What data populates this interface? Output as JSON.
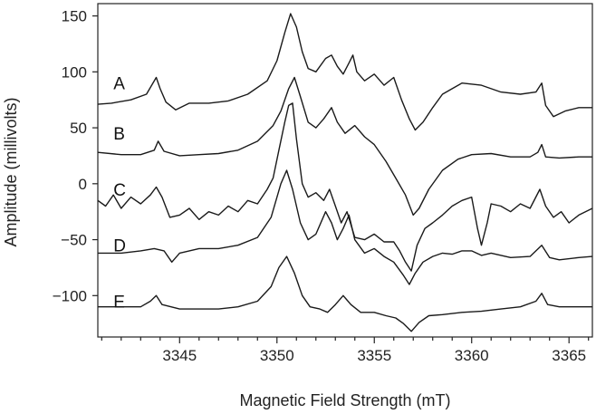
{
  "chart_data": {
    "type": "line",
    "title": "",
    "xlabel": "Magnetic Field Strength (mT)",
    "ylabel": "Amplitude (millivolts)",
    "xlim": [
      3340.8,
      3366.2
    ],
    "ylim": [
      -137,
      161
    ],
    "x_ticks": [
      3345,
      3350,
      3355,
      3360,
      3365
    ],
    "y_ticks": [
      150,
      100,
      50,
      0,
      -50,
      -100
    ],
    "y_tick_labels": [
      "150",
      "100",
      "50",
      "0",
      "−50",
      "−100"
    ],
    "grid": false,
    "legend": "none",
    "series": [
      {
        "name": "A",
        "label_at": [
          3341.6,
          90
        ],
        "points": [
          [
            3340.8,
            71
          ],
          [
            3341.5,
            72
          ],
          [
            3342.5,
            75
          ],
          [
            3343.3,
            80
          ],
          [
            3343.8,
            95
          ],
          [
            3344.0,
            85
          ],
          [
            3344.3,
            73
          ],
          [
            3344.8,
            66
          ],
          [
            3345.5,
            72
          ],
          [
            3346.5,
            72
          ],
          [
            3347.5,
            74
          ],
          [
            3348.5,
            80
          ],
          [
            3349.5,
            92
          ],
          [
            3350.0,
            110
          ],
          [
            3350.4,
            135
          ],
          [
            3350.7,
            152
          ],
          [
            3351.0,
            140
          ],
          [
            3351.3,
            118
          ],
          [
            3351.6,
            103
          ],
          [
            3352.0,
            100
          ],
          [
            3352.5,
            112
          ],
          [
            3352.8,
            115
          ],
          [
            3353.1,
            105
          ],
          [
            3353.4,
            98
          ],
          [
            3353.7,
            108
          ],
          [
            3353.9,
            115
          ],
          [
            3354.1,
            100
          ],
          [
            3354.5,
            92
          ],
          [
            3355.0,
            98
          ],
          [
            3355.5,
            88
          ],
          [
            3356.0,
            95
          ],
          [
            3356.4,
            75
          ],
          [
            3356.8,
            58
          ],
          [
            3357.1,
            48
          ],
          [
            3357.5,
            55
          ],
          [
            3358.0,
            68
          ],
          [
            3358.5,
            80
          ],
          [
            3359.0,
            85
          ],
          [
            3359.5,
            90
          ],
          [
            3360.5,
            88
          ],
          [
            3361.5,
            82
          ],
          [
            3362.5,
            80
          ],
          [
            3363.3,
            82
          ],
          [
            3363.6,
            90
          ],
          [
            3363.8,
            70
          ],
          [
            3364.2,
            60
          ],
          [
            3364.8,
            65
          ],
          [
            3365.5,
            68
          ],
          [
            3366.2,
            68
          ]
        ]
      },
      {
        "name": "B",
        "label_at": [
          3341.6,
          45
        ],
        "points": [
          [
            3340.8,
            28
          ],
          [
            3342.0,
            26
          ],
          [
            3343.0,
            26
          ],
          [
            3343.7,
            30
          ],
          [
            3343.9,
            38
          ],
          [
            3344.2,
            29
          ],
          [
            3345.0,
            25
          ],
          [
            3346.0,
            26
          ],
          [
            3347.0,
            27
          ],
          [
            3348.0,
            30
          ],
          [
            3349.0,
            38
          ],
          [
            3349.8,
            52
          ],
          [
            3350.2,
            65
          ],
          [
            3350.6,
            85
          ],
          [
            3350.9,
            95
          ],
          [
            3351.2,
            78
          ],
          [
            3351.6,
            55
          ],
          [
            3352.0,
            50
          ],
          [
            3352.4,
            58
          ],
          [
            3352.8,
            68
          ],
          [
            3353.1,
            55
          ],
          [
            3353.5,
            45
          ],
          [
            3354.0,
            52
          ],
          [
            3354.5,
            42
          ],
          [
            3355.0,
            35
          ],
          [
            3355.6,
            20
          ],
          [
            3356.1,
            5
          ],
          [
            3356.6,
            -10
          ],
          [
            3357.0,
            -28
          ],
          [
            3357.3,
            -22
          ],
          [
            3357.8,
            -5
          ],
          [
            3358.5,
            12
          ],
          [
            3359.3,
            22
          ],
          [
            3360.0,
            26
          ],
          [
            3361.0,
            27
          ],
          [
            3362.0,
            24
          ],
          [
            3363.0,
            24
          ],
          [
            3363.4,
            28
          ],
          [
            3363.6,
            35
          ],
          [
            3363.8,
            24
          ],
          [
            3364.5,
            23
          ],
          [
            3365.5,
            24
          ],
          [
            3366.2,
            24
          ]
        ]
      },
      {
        "name": "C",
        "label_at": [
          3341.6,
          -5
        ],
        "points": [
          [
            3340.8,
            -15
          ],
          [
            3341.2,
            -20
          ],
          [
            3341.6,
            -10
          ],
          [
            3342.0,
            -22
          ],
          [
            3342.5,
            -12
          ],
          [
            3343.0,
            -18
          ],
          [
            3343.5,
            -10
          ],
          [
            3343.8,
            -3
          ],
          [
            3344.1,
            -12
          ],
          [
            3344.5,
            -30
          ],
          [
            3345.0,
            -28
          ],
          [
            3345.5,
            -22
          ],
          [
            3346.0,
            -32
          ],
          [
            3346.5,
            -25
          ],
          [
            3347.0,
            -28
          ],
          [
            3347.5,
            -20
          ],
          [
            3348.0,
            -25
          ],
          [
            3348.5,
            -15
          ],
          [
            3349.0,
            -18
          ],
          [
            3349.5,
            -5
          ],
          [
            3349.8,
            5
          ],
          [
            3350.1,
            30
          ],
          [
            3350.4,
            55
          ],
          [
            3350.6,
            70
          ],
          [
            3350.8,
            72
          ],
          [
            3351.0,
            40
          ],
          [
            3351.3,
            0
          ],
          [
            3351.6,
            -12
          ],
          [
            3352.0,
            -8
          ],
          [
            3352.4,
            -15
          ],
          [
            3352.7,
            -5
          ],
          [
            3353.0,
            -20
          ],
          [
            3353.3,
            -35
          ],
          [
            3353.6,
            -25
          ],
          [
            3354.0,
            -48
          ],
          [
            3354.5,
            -50
          ],
          [
            3355.0,
            -45
          ],
          [
            3355.5,
            -52
          ],
          [
            3356.0,
            -52
          ],
          [
            3356.3,
            -60
          ],
          [
            3356.6,
            -70
          ],
          [
            3356.9,
            -78
          ],
          [
            3357.2,
            -55
          ],
          [
            3357.6,
            -40
          ],
          [
            3358.0,
            -35
          ],
          [
            3358.5,
            -28
          ],
          [
            3359.0,
            -20
          ],
          [
            3359.5,
            -15
          ],
          [
            3360.0,
            -12
          ],
          [
            3360.3,
            -40
          ],
          [
            3360.5,
            -55
          ],
          [
            3360.8,
            -35
          ],
          [
            3361.0,
            -18
          ],
          [
            3361.5,
            -20
          ],
          [
            3362.0,
            -25
          ],
          [
            3362.5,
            -18
          ],
          [
            3363.0,
            -22
          ],
          [
            3363.5,
            -5
          ],
          [
            3363.8,
            -20
          ],
          [
            3364.2,
            -30
          ],
          [
            3364.6,
            -25
          ],
          [
            3365.0,
            -35
          ],
          [
            3365.5,
            -28
          ],
          [
            3366.2,
            -22
          ]
        ]
      },
      {
        "name": "D",
        "label_at": [
          3341.6,
          -55
        ],
        "points": [
          [
            3340.8,
            -62
          ],
          [
            3342.0,
            -62
          ],
          [
            3343.0,
            -60
          ],
          [
            3343.7,
            -58
          ],
          [
            3344.2,
            -60
          ],
          [
            3344.6,
            -70
          ],
          [
            3345.0,
            -62
          ],
          [
            3346.0,
            -58
          ],
          [
            3347.0,
            -58
          ],
          [
            3348.0,
            -55
          ],
          [
            3349.0,
            -48
          ],
          [
            3349.7,
            -30
          ],
          [
            3350.2,
            0
          ],
          [
            3350.5,
            12
          ],
          [
            3350.8,
            -5
          ],
          [
            3351.2,
            -35
          ],
          [
            3351.6,
            -50
          ],
          [
            3352.0,
            -45
          ],
          [
            3352.5,
            -25
          ],
          [
            3352.8,
            -35
          ],
          [
            3353.1,
            -50
          ],
          [
            3353.4,
            -40
          ],
          [
            3353.7,
            -28
          ],
          [
            3354.0,
            -50
          ],
          [
            3354.5,
            -62
          ],
          [
            3355.0,
            -58
          ],
          [
            3355.5,
            -65
          ],
          [
            3356.0,
            -70
          ],
          [
            3356.5,
            -82
          ],
          [
            3356.8,
            -90
          ],
          [
            3357.1,
            -80
          ],
          [
            3357.5,
            -70
          ],
          [
            3358.0,
            -65
          ],
          [
            3358.5,
            -62
          ],
          [
            3359.0,
            -63
          ],
          [
            3359.5,
            -60
          ],
          [
            3360.0,
            -60
          ],
          [
            3360.5,
            -64
          ],
          [
            3361.0,
            -62
          ],
          [
            3362.0,
            -66
          ],
          [
            3363.0,
            -65
          ],
          [
            3363.6,
            -55
          ],
          [
            3364.0,
            -66
          ],
          [
            3364.5,
            -68
          ],
          [
            3365.5,
            -66
          ],
          [
            3366.2,
            -65
          ]
        ]
      },
      {
        "name": "E",
        "label_at": [
          3341.6,
          -105
        ],
        "points": [
          [
            3340.8,
            -110
          ],
          [
            3342.0,
            -110
          ],
          [
            3343.0,
            -110
          ],
          [
            3343.5,
            -105
          ],
          [
            3343.8,
            -100
          ],
          [
            3344.1,
            -108
          ],
          [
            3345.0,
            -112
          ],
          [
            3346.0,
            -112
          ],
          [
            3347.0,
            -112
          ],
          [
            3348.0,
            -110
          ],
          [
            3349.0,
            -105
          ],
          [
            3349.7,
            -92
          ],
          [
            3350.1,
            -75
          ],
          [
            3350.5,
            -65
          ],
          [
            3350.9,
            -80
          ],
          [
            3351.3,
            -100
          ],
          [
            3351.7,
            -110
          ],
          [
            3352.2,
            -112
          ],
          [
            3352.6,
            -115
          ],
          [
            3353.0,
            -108
          ],
          [
            3353.4,
            -100
          ],
          [
            3353.8,
            -108
          ],
          [
            3354.3,
            -115
          ],
          [
            3355.0,
            -115
          ],
          [
            3355.6,
            -118
          ],
          [
            3356.1,
            -120
          ],
          [
            3356.5,
            -125
          ],
          [
            3356.9,
            -132
          ],
          [
            3357.3,
            -124
          ],
          [
            3357.8,
            -118
          ],
          [
            3358.5,
            -117
          ],
          [
            3359.5,
            -115
          ],
          [
            3360.5,
            -114
          ],
          [
            3361.5,
            -112
          ],
          [
            3362.5,
            -110
          ],
          [
            3363.3,
            -105
          ],
          [
            3363.6,
            -98
          ],
          [
            3363.9,
            -108
          ],
          [
            3364.5,
            -110
          ],
          [
            3365.5,
            -110
          ],
          [
            3366.2,
            -110
          ]
        ]
      }
    ]
  }
}
